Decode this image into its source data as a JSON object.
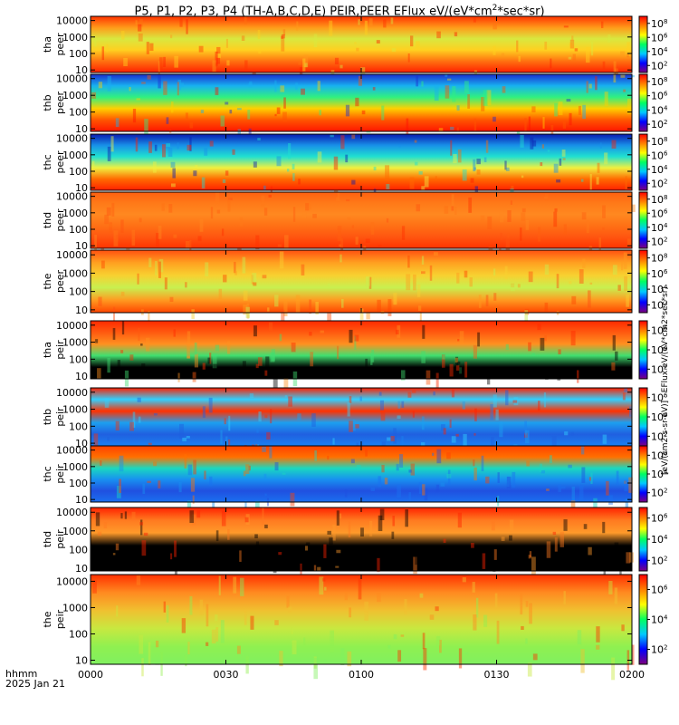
{
  "title": {
    "prefix": "P5, P1, P2, P3, P4 (TH-A,B,C,D,E) PEIR,PEER EFlux eV/(eV*cm",
    "sup": "2",
    "suffix": "*sec*sr)"
  },
  "footer": {
    "hhmm": "hhmm",
    "date": "2025 Jan 21"
  },
  "colorbar_label": "[eV/(cm2-s-sr-eV)] · EFlux eV/(eV*cm2*sec*sr)",
  "chart_data": {
    "type": "heatmap",
    "x_axis": {
      "range": [
        "0000",
        "0200"
      ],
      "ticks": [
        "0000",
        "0030",
        "0100",
        "0130",
        "0200"
      ]
    },
    "y_axis": {
      "scale": "log",
      "unit": "eV",
      "ticks": [
        "10",
        "100",
        "1000",
        "10000"
      ]
    },
    "colormap": [
      "#7f007f",
      "#0000ff",
      "#00c8ff",
      "#00ff60",
      "#ffff00",
      "#ff8000",
      "#ff0000"
    ],
    "panels": [
      {
        "probe": "tha",
        "species": "peer",
        "colorbar_ticks": [
          "10^2",
          "10^4",
          "10^6",
          "10^8"
        ],
        "band_colors": [
          "#ff3300",
          "#ff9a1a",
          "#d8e840",
          "#ffd020",
          "#ff7010",
          "#ff2000"
        ]
      },
      {
        "probe": "thb",
        "species": "peer",
        "colorbar_ticks": [
          "10^2",
          "10^4",
          "10^6",
          "10^8"
        ],
        "band_colors": [
          "#1a2fd0",
          "#18b0f0",
          "#30f080",
          "#ffd000",
          "#ff5500",
          "#ff1500"
        ]
      },
      {
        "probe": "thc",
        "species": "peer",
        "colorbar_ticks": [
          "10^2",
          "10^4",
          "10^6",
          "10^8"
        ],
        "band_colors": [
          "#0a1ab0",
          "#1890e8",
          "#20e0d0",
          "#f0f040",
          "#ff6a00",
          "#ff2000"
        ]
      },
      {
        "probe": "thd",
        "species": "peer",
        "colorbar_ticks": [
          "10^2",
          "10^4",
          "10^6",
          "10^8"
        ],
        "band_colors": [
          "#ff6010",
          "#ff7a18",
          "#ff8820",
          "#ff7015",
          "#ff5510",
          "#ff3300"
        ]
      },
      {
        "probe": "the",
        "species": "peer",
        "colorbar_ticks": [
          "10^2",
          "10^4",
          "10^6",
          "10^8"
        ],
        "band_colors": [
          "#ff5010",
          "#ffa020",
          "#f8d030",
          "#c8f050",
          "#ff9a20",
          "#ff4400"
        ]
      },
      {
        "probe": "tha",
        "species": "peir",
        "colorbar_ticks": [
          "10^2",
          "10^4",
          "10^6"
        ],
        "band_colors": [
          "#ff2a00",
          "#ff5a10",
          "#ff9020",
          "#40e070",
          "#000000",
          "#000000"
        ]
      },
      {
        "probe": "thb",
        "species": "peir",
        "colorbar_ticks": [
          "10^2",
          "10^4",
          "10^6"
        ],
        "band_colors": [
          "#ff2000",
          "#30d0ff",
          "#ff3000",
          "#1ca0f0",
          "#2060e0",
          "#1a80f0"
        ]
      },
      {
        "probe": "thc",
        "species": "peir",
        "colorbar_ticks": [
          "10^2",
          "10^4",
          "10^6"
        ],
        "band_colors": [
          "#ff4000",
          "#ff7000",
          "#1ad8c0",
          "#1890f0",
          "#2050e0",
          "#1a70f0"
        ]
      },
      {
        "probe": "thd",
        "species": "peir",
        "colorbar_ticks": [
          "10^2",
          "10^4",
          "10^6"
        ],
        "band_colors": [
          "#ff2200",
          "#ff7a20",
          "#ff9a2a",
          "#000000",
          "#000000",
          "#000000"
        ]
      },
      {
        "probe": "the",
        "species": "peir",
        "colorbar_ticks": [
          "10^2",
          "10^4",
          "10^6"
        ],
        "band_colors": [
          "#ff3000",
          "#ff8a20",
          "#f0c030",
          "#c8e840",
          "#90f050",
          "#80f060"
        ]
      }
    ]
  }
}
